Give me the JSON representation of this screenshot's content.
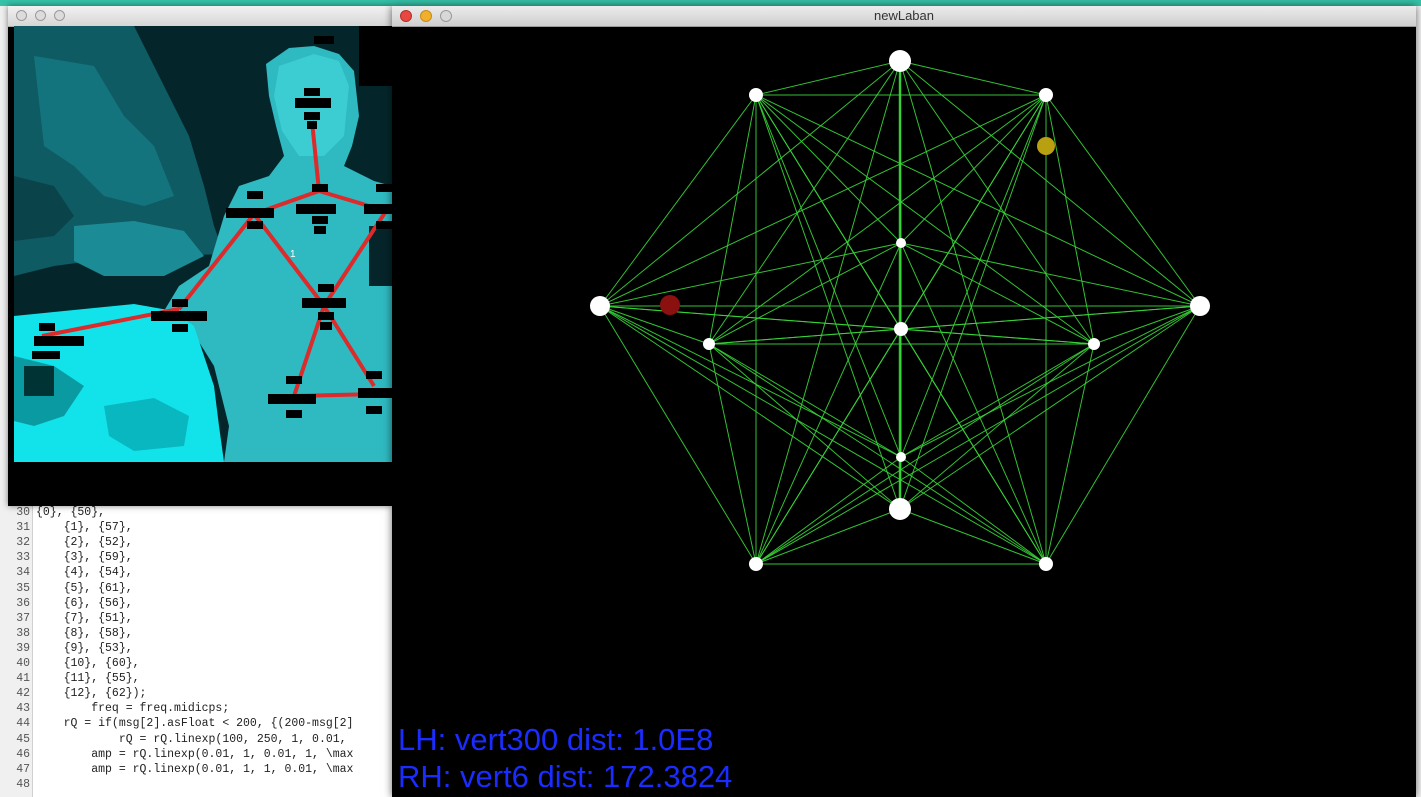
{
  "windows": {
    "main": {
      "title": "newLaban"
    },
    "depth": {
      "title": "",
      "joint_label": "1"
    }
  },
  "hud": {
    "lh": "LH: vert300 dist: 1.0E8",
    "rh": "RH: vert6 dist: 172.3824"
  },
  "editor": {
    "lines": [
      {
        "num": "30",
        "text": "{0}, {50},"
      },
      {
        "num": "31",
        "text": "    {1}, {57},"
      },
      {
        "num": "32",
        "text": "    {2}, {52},"
      },
      {
        "num": "33",
        "text": "    {3}, {59},"
      },
      {
        "num": "34",
        "text": "    {4}, {54},"
      },
      {
        "num": "35",
        "text": "    {5}, {61},"
      },
      {
        "num": "36",
        "text": "    {6}, {56},"
      },
      {
        "num": "37",
        "text": "    {7}, {51},"
      },
      {
        "num": "38",
        "text": "    {8}, {58},"
      },
      {
        "num": "39",
        "text": "    {9}, {53},"
      },
      {
        "num": "40",
        "text": "    {10}, {60},"
      },
      {
        "num": "41",
        "text": "    {11}, {55},"
      },
      {
        "num": "42",
        "text": "    {12}, {62});"
      },
      {
        "num": "43",
        "text": "        freq = freq.midicps;"
      },
      {
        "num": "44",
        "text": "    rQ = if(msg[2].asFloat < 200, {(200-msg[2]"
      },
      {
        "num": "45",
        "text": "            rQ = rQ.linexp(100, 250, 1, 0.01,"
      },
      {
        "num": "46",
        "text": "        amp = rQ.linexp(0.01, 1, 0.01, 1, \\max"
      },
      {
        "num": "47",
        "text": "        amp = rQ.linexp(0.01, 1, 1, 0.01, \\max"
      },
      {
        "num": "48",
        "text": ""
      }
    ]
  },
  "colors": {
    "edge": "#39d639",
    "vertex": "#ffffff",
    "left_hand_marker": "#8b1010",
    "right_hand_marker": "#b8a010",
    "skeleton": "#dd2a2a",
    "depth_body": "#2fd3d9",
    "hud_text": "#1a2cff"
  }
}
